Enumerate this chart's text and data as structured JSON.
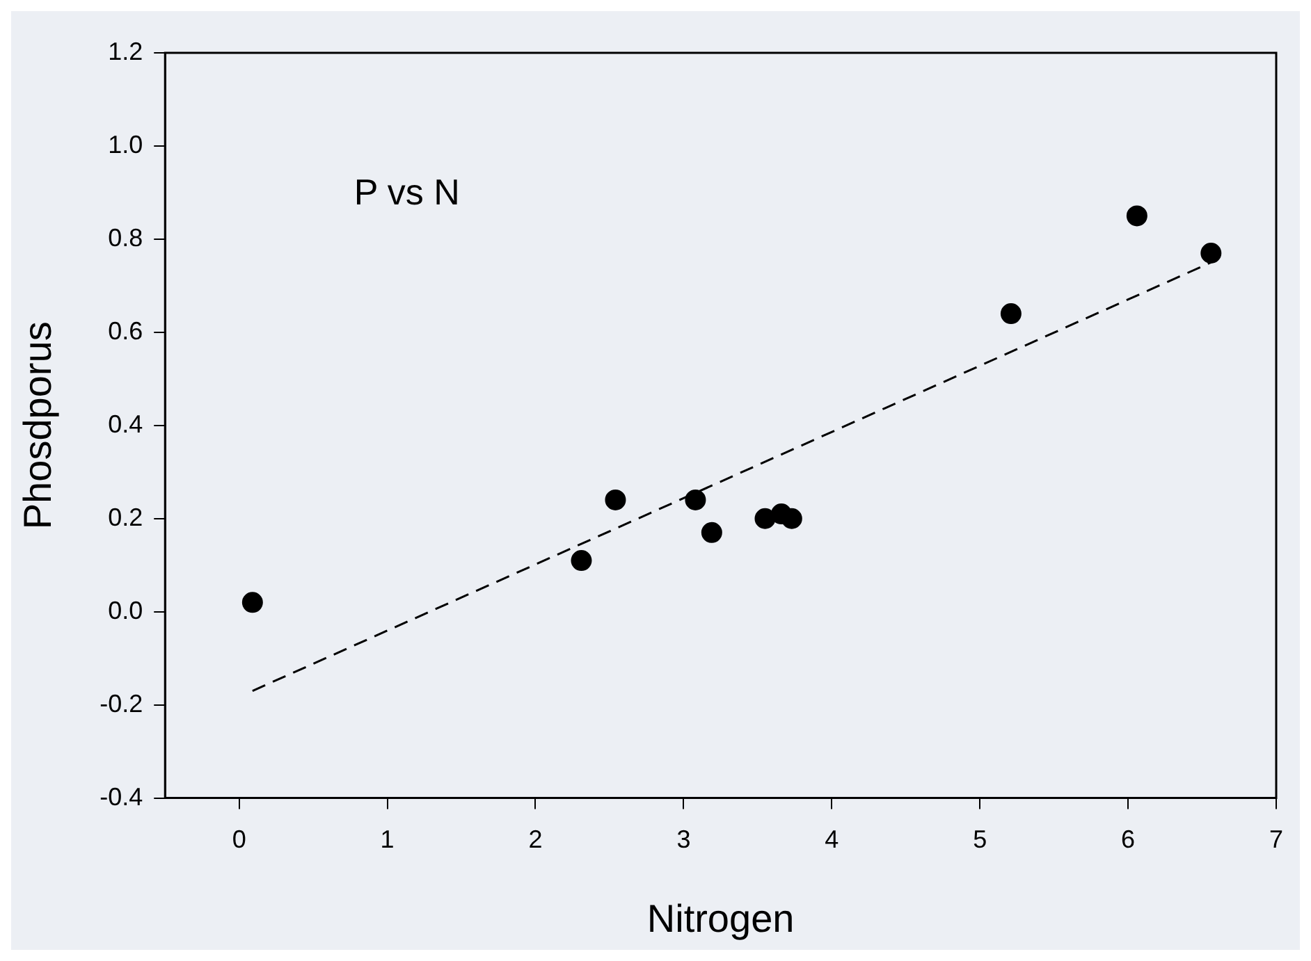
{
  "chart_data": {
    "type": "scatter",
    "xlabel": "Nitrogen",
    "ylabel": "Phosdporus",
    "annotations": [
      "P vs N"
    ],
    "xlim": [
      -0.5,
      7
    ],
    "xticks": [
      0,
      1,
      2,
      3,
      4,
      5,
      6,
      7
    ],
    "ylim": [
      -0.4,
      1.2
    ],
    "yticks": [
      {
        "value": -0.4,
        "label": "-0.4"
      },
      {
        "value": -0.2,
        "label": "-0.2"
      },
      {
        "value": 0,
        "label": "0.0"
      },
      {
        "value": 0.2,
        "label": "0.2"
      },
      {
        "value": 0.4,
        "label": "0.4"
      },
      {
        "value": 0.6,
        "label": "0.6"
      },
      {
        "value": 0.8,
        "label": "0.8"
      },
      {
        "value": 1,
        "label": "1.0"
      },
      {
        "value": 1.2,
        "label": "1.2"
      }
    ],
    "grid": false,
    "legend": false,
    "marker": "circle",
    "series": [
      {
        "color": "#000000",
        "x": [
          0.09,
          2.31,
          2.54,
          3.08,
          3.19,
          3.55,
          3.66,
          3.73,
          5.21,
          6.06,
          6.56
        ],
        "values": [
          0.02,
          0.11,
          0.24,
          0.24,
          0.17,
          0.2,
          0.21,
          0.2,
          0.64,
          0.85,
          0.77
        ]
      },
      {
        "type": "line",
        "color": "#000000",
        "line_style": "dashed",
        "marker": "none",
        "x": [
          0.09,
          6.56
        ],
        "values": [
          -0.17,
          0.75
        ]
      }
    ]
  }
}
